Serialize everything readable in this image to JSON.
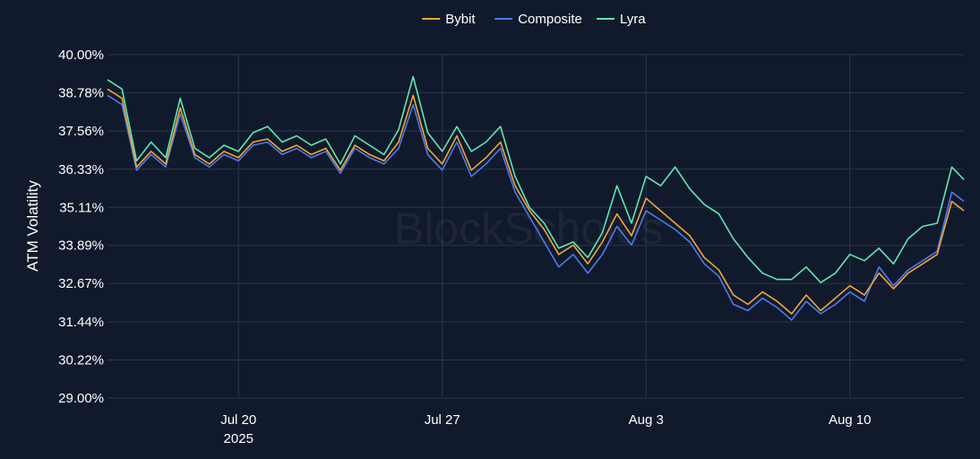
{
  "chart_data": {
    "type": "line",
    "title": "",
    "ylabel": "ATM Volatility",
    "xlabel": "",
    "watermark": "BlockScholes",
    "legend_position": "top-center",
    "grid": true,
    "ylim": [
      29.0,
      40.0
    ],
    "yticks": [
      "29.00%",
      "30.22%",
      "31.44%",
      "32.67%",
      "33.89%",
      "35.11%",
      "36.33%",
      "37.56%",
      "38.78%",
      "40.00%"
    ],
    "x_range": [
      "2025-07-15T12:00",
      "2025-08-13T22:00"
    ],
    "xticks": [
      {
        "date": "2025-07-20",
        "label": "Jul 20",
        "sublabel": "2025"
      },
      {
        "date": "2025-07-27",
        "label": "Jul 27",
        "sublabel": ""
      },
      {
        "date": "2025-08-03",
        "label": "Aug 3",
        "sublabel": ""
      },
      {
        "date": "2025-08-10",
        "label": "Aug 10",
        "sublabel": ""
      }
    ],
    "x": [
      "2025-07-15T12:00",
      "2025-07-16T00:00",
      "2025-07-16T12:00",
      "2025-07-17T00:00",
      "2025-07-17T12:00",
      "2025-07-18T00:00",
      "2025-07-18T12:00",
      "2025-07-19T00:00",
      "2025-07-19T12:00",
      "2025-07-20T00:00",
      "2025-07-20T12:00",
      "2025-07-21T00:00",
      "2025-07-21T12:00",
      "2025-07-22T00:00",
      "2025-07-22T12:00",
      "2025-07-23T00:00",
      "2025-07-23T12:00",
      "2025-07-24T00:00",
      "2025-07-24T12:00",
      "2025-07-25T00:00",
      "2025-07-25T12:00",
      "2025-07-26T00:00",
      "2025-07-26T12:00",
      "2025-07-27T00:00",
      "2025-07-27T12:00",
      "2025-07-28T00:00",
      "2025-07-28T12:00",
      "2025-07-29T00:00",
      "2025-07-29T12:00",
      "2025-07-30T00:00",
      "2025-07-30T12:00",
      "2025-07-31T00:00",
      "2025-07-31T12:00",
      "2025-08-01T00:00",
      "2025-08-01T12:00",
      "2025-08-02T00:00",
      "2025-08-02T12:00",
      "2025-08-03T00:00",
      "2025-08-03T12:00",
      "2025-08-04T00:00",
      "2025-08-04T12:00",
      "2025-08-05T00:00",
      "2025-08-05T12:00",
      "2025-08-06T00:00",
      "2025-08-06T12:00",
      "2025-08-07T00:00",
      "2025-08-07T12:00",
      "2025-08-08T00:00",
      "2025-08-08T12:00",
      "2025-08-09T00:00",
      "2025-08-09T12:00",
      "2025-08-10T00:00",
      "2025-08-10T12:00",
      "2025-08-11T00:00",
      "2025-08-11T12:00",
      "2025-08-12T00:00",
      "2025-08-12T12:00",
      "2025-08-13T00:00",
      "2025-08-13T12:00",
      "2025-08-13T22:00"
    ],
    "series": [
      {
        "name": "Bybit",
        "color": "#f0a63a",
        "values": [
          38.9,
          38.6,
          36.4,
          36.9,
          36.5,
          38.3,
          36.8,
          36.5,
          36.9,
          36.7,
          37.2,
          37.3,
          36.9,
          37.1,
          36.8,
          37.0,
          36.3,
          37.1,
          36.8,
          36.6,
          37.2,
          38.7,
          37.0,
          36.5,
          37.4,
          36.3,
          36.7,
          37.2,
          35.8,
          35.0,
          34.4,
          33.6,
          33.9,
          33.3,
          34.0,
          34.9,
          34.2,
          35.4,
          35.0,
          34.6,
          34.2,
          33.5,
          33.1,
          32.3,
          32.0,
          32.4,
          32.1,
          31.7,
          32.3,
          31.8,
          32.2,
          32.6,
          32.3,
          33.0,
          32.5,
          33.0,
          33.3,
          33.6,
          35.3,
          35.0
        ]
      },
      {
        "name": "Composite",
        "color": "#4c7be8",
        "values": [
          38.7,
          38.4,
          36.3,
          36.8,
          36.4,
          38.1,
          36.7,
          36.4,
          36.8,
          36.6,
          37.1,
          37.2,
          36.8,
          37.0,
          36.7,
          36.9,
          36.2,
          37.0,
          36.7,
          36.5,
          37.0,
          38.4,
          36.8,
          36.3,
          37.2,
          36.1,
          36.5,
          37.0,
          35.6,
          34.8,
          34.0,
          33.2,
          33.6,
          33.0,
          33.6,
          34.5,
          33.9,
          35.0,
          34.7,
          34.4,
          34.0,
          33.3,
          32.9,
          32.0,
          31.8,
          32.2,
          31.9,
          31.5,
          32.1,
          31.7,
          32.0,
          32.4,
          32.1,
          33.2,
          32.6,
          33.1,
          33.4,
          33.7,
          35.6,
          35.3
        ]
      },
      {
        "name": "Lyra",
        "color": "#5ee8b0",
        "values": [
          39.2,
          38.9,
          36.6,
          37.2,
          36.7,
          38.6,
          37.0,
          36.7,
          37.1,
          36.9,
          37.5,
          37.7,
          37.2,
          37.4,
          37.1,
          37.3,
          36.5,
          37.4,
          37.1,
          36.8,
          37.6,
          39.3,
          37.5,
          36.9,
          37.7,
          36.9,
          37.2,
          37.7,
          36.1,
          35.1,
          34.6,
          33.8,
          34.0,
          33.5,
          34.3,
          35.8,
          34.6,
          36.1,
          35.8,
          36.4,
          35.7,
          35.2,
          34.9,
          34.1,
          33.5,
          33.0,
          32.8,
          32.8,
          33.2,
          32.7,
          33.0,
          33.6,
          33.4,
          33.8,
          33.3,
          34.1,
          34.5,
          34.6,
          36.4,
          36.0
        ]
      }
    ]
  }
}
